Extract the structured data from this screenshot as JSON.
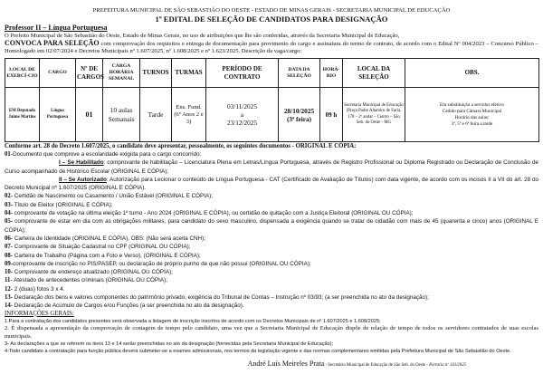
{
  "header": {
    "line1": "PREFEITURA MUNICIPAL DE SÃO SEBASTIÃO DO OESTE - ESTADO DE MINAS GERAIS - SECRETARIA MUNICIPAL DE EDUCAÇÃO",
    "title": "1º EDITAL DE SELEÇÃO DE CANDIDATOS PARA DESIGNAÇÃO",
    "subtitle": "Professor II – Língua Portuguesa"
  },
  "intro": {
    "p1": "O Prefeito Municipal de São Sebastião do Oeste, Estado de Minas Gerais, no uso de atribuições que lhe são conferidas, através da Secretaria Municipal de Educação,",
    "convoca": "CONVOCA PARA SELEÇÃO",
    "p2": " com comprovação dos requisitos e entrega de documentação para provimento do cargo e assinatura do termo de contrato, de acordo com o Edital Nº 004/2023 – Concurso Público – Homologado em 02/07/2024 e Decretos Municipais nº 1.607/2025, nº 1.608/2025 e nº 1.623/2025. Descrição da vaga/cargo:"
  },
  "table": {
    "headers": [
      "LOCAL DE EXERCÍ-CIO",
      "CARGO",
      "Nº DE CARGOS",
      "CARGA HORÁRIA SEMANAL",
      "TURNOS",
      "TURMAS",
      "PERÍODO DE CONTRATO",
      "DATA DA SELEÇÃO",
      "HORÁ-RIO",
      "LOCAL DA SELEÇÃO",
      "OBS."
    ],
    "row": {
      "local": "EM Deputado Jaime Martins",
      "cargo": "Língua Portuguesa",
      "num": "01",
      "carga": "10 aulas Semanais",
      "turno": "Tarde",
      "turmas": "Ens. Fund. (6º Anos 2 e 3)",
      "periodo_inicio": "03/11/2025",
      "periodo_a": "a",
      "periodo_fim": "23/12/2025",
      "data": "28/10/2025",
      "dia": "(3ª feira)",
      "horario": "09 h",
      "local_selecao": "Secretaria Municipal de Educação (Praça Padre Altamiro de Faria, 178 – 2º andar – Centro – São Seb. do Oeste - MG",
      "obs1": "Em substituição a servidor efetivo",
      "obs2": "Cedido para Câmara Municipal",
      "obs3": "Horário das aulas:",
      "obs4": "3ª, 5ª e 6ª feira a tarde"
    }
  },
  "docs": {
    "lead": "Conforme art. 28 do Decreto 1.607/2025, o candidato deve apresentar, pessoalmente, os seguintes documentos - ORIGINAL E CÓPIA:",
    "i01_num": "01-",
    "i01": "Documento que comprove a escolaridade exigida para o cargo concorrido:",
    "hab_label": "I – Se Habilitado",
    "hab_text": ": comprovante de habilitação – Licenciatura Plena em Letras/Língua Portuguesa, através de Registro Profissional ou Diploma Registrado ou Declaração de Conclusão de Curso acompanhado de Histórico Escolar (ORIGINAL E CÓPIA);",
    "aut_label": "II – Se Autorizado",
    "aut_text": ": Autorização para Lecionar o conteúdo de Língua Portuguesa - CAT (Certificado de Avaliação de Títulos) com data vigente, de acordo com os incisos II a VII do art. 28 do Decreto Municipal nº 1.607/2025 (ORIGINAL E CÓPIA).",
    "items": [
      {
        "num": "02-",
        "text": " Certidão de Nascimento ou Casamento / União Estável (ORIGINAL E CÓPIA);"
      },
      {
        "num": "03-",
        "text": " Título de Eleitor (ORIGINAL E CÓPIA);"
      },
      {
        "num": "04-",
        "text": " comprovante de votação na última eleição  1º turno - Ano 2024 (ORIGINAL E CÓPIA), ou certidão de quitação com a Justiça Eleitoral (ORIGINAL OU CÓPIA);"
      },
      {
        "num": "05-",
        "text": " comprovante de estar em dia com as obrigações militares, para candidato do sexo masculino, dispensada a exigência quando se tratar de cidadão com mais de 45 (quarenta e cinco) anos (ORIGINAL E CÓPIA);"
      },
      {
        "num": "06-",
        "text": " Carteira de Identidade (ORIGINAL E CÓPIA). OBS: (Não será aceita CNH);"
      },
      {
        "num": "07-",
        "text": " Comprovante de Situação Cadastral no CPF (ORIGINAL  OU CÓPIA);"
      },
      {
        "num": "08-",
        "text": " Carteira de Trabalho (Página com a Foto e Verso), (ORIGINAL E CÓPIA);"
      },
      {
        "num": "09-",
        "text": "comprovante de inscrição no PIS/PASEP, ou declaração de próprio punho de que não possui (ORIGINAL OU CÓPIA);"
      },
      {
        "num": "10-",
        "text": " Comprovante de endereço atualizado (ORIGINAL OU CÓPIA);"
      },
      {
        "num": "11-",
        "text": " Atestado de antecedentes criminais (ORIGINAL OU CÓPIA);"
      },
      {
        "num": "12-",
        "text": " 2 (duas) fotos 3 x 4."
      },
      {
        "num": "13-",
        "text": " Declaração dos bens e valores componentes do patrimônio privado, exigência do Tribunal de Contas – Instrução nº 03/93; (a ser preenchida no ato da designação);"
      },
      {
        "num": "14-",
        "text": " Declaração de Acúmulo de Cargos e/ou Funções (a ser preenchida no ato da designação)."
      }
    ]
  },
  "info": {
    "title": "INFORMAÇÕES GERAIS:",
    "i1": "1.Para a contratação dos candidatos presentes será observada a listagem de inscrição inscritos de acordo com os Decretos Municipais de nº  1.607/2025 e 1.608/2025;",
    "i2": "2. É dispensada a apresentação da comprovação de contagem de tempo pelo candidato, uma vez que a Secretaria Municipal de Educação dispõe de relação de tempo de todos os servidores contratados de suas escolas municipais.",
    "i3": "3- As declarações a que se referem os itens 13 e 14 serão preenchidas no ato da designação (fornecidas pela Secretaria Municipal de Educação);",
    "i4": "4-Todo candidato à contratação para função pública deverá submeter-se a exames admissionais, nos termos da legislação vigente e das normas complementares emitidas pela Prefeitura Municipal de São Sebastião do Oeste."
  },
  "signature": {
    "name": "André Luís Meireles Prata",
    "role": " - Secretário Municipal de Educação de São Seb. do Oeste - ",
    "portaria": "Portaria nº 143/2025"
  }
}
